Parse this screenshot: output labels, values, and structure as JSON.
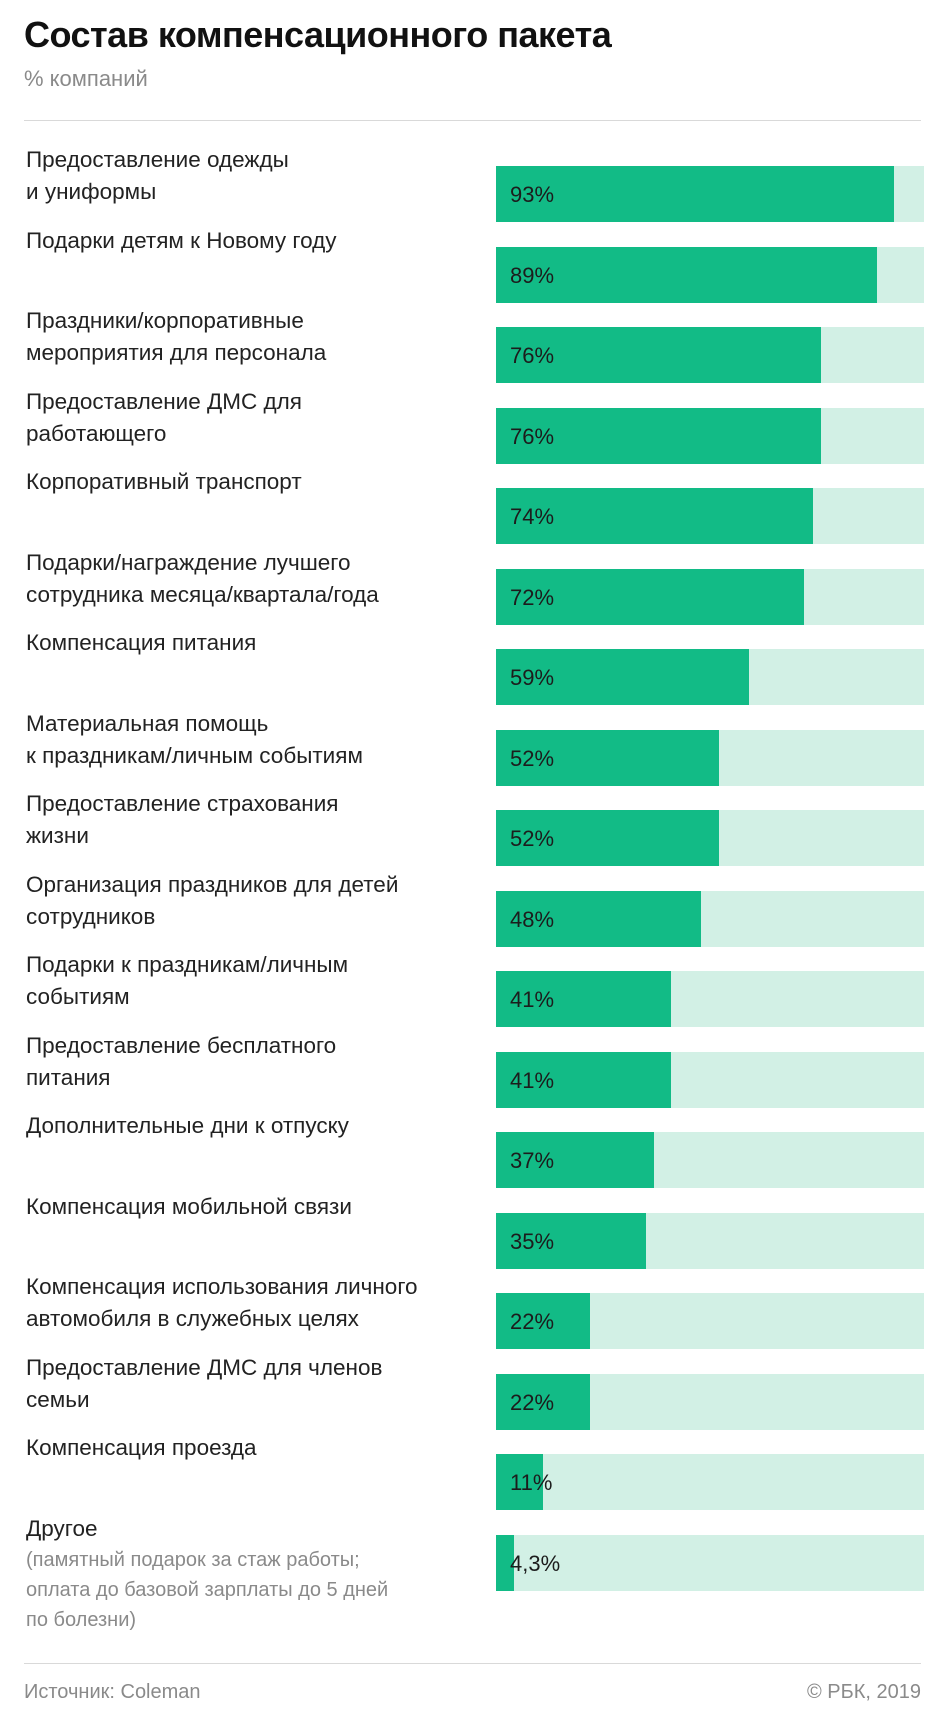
{
  "header": {
    "title": "Состав компенсационного пакета",
    "subtitle": "% компаний"
  },
  "footer": {
    "source": "Источник: Coleman",
    "copyright": "© РБК, 2019"
  },
  "colors": {
    "bar": "#12bb86",
    "track": "#d2f0e5",
    "text": "#222222",
    "muted": "#8a8a8a"
  },
  "chart_data": {
    "type": "bar",
    "orientation": "horizontal",
    "title": "Состав компенсационного пакета",
    "subtitle": "% компаний",
    "xlim": [
      0,
      100
    ],
    "grid": false,
    "categories": [
      {
        "lines": [
          "Предоставление одежды",
          "и униформы"
        ],
        "value": 93,
        "value_label": "93%"
      },
      {
        "lines": [
          "Подарки детям к Новому году"
        ],
        "value": 89,
        "value_label": "89%"
      },
      {
        "lines": [
          "Праздники/корпоративные",
          "мероприятия для персонала"
        ],
        "value": 76,
        "value_label": "76%"
      },
      {
        "lines": [
          "Предоставление ДМС для",
          "работающего"
        ],
        "value": 76,
        "value_label": "76%"
      },
      {
        "lines": [
          "Корпоративный транспорт"
        ],
        "value": 74,
        "value_label": "74%"
      },
      {
        "lines": [
          "Подарки/награждение лучшего",
          "сотрудника месяца/квартала/года"
        ],
        "value": 72,
        "value_label": "72%"
      },
      {
        "lines": [
          "Компенсация питания"
        ],
        "value": 59,
        "value_label": "59%"
      },
      {
        "lines": [
          "Материальная помощь",
          "к праздникам/личным событиям"
        ],
        "value": 52,
        "value_label": "52%"
      },
      {
        "lines": [
          "Предоставление страхования",
          "жизни"
        ],
        "value": 52,
        "value_label": "52%"
      },
      {
        "lines": [
          "Организация праздников для детей",
          "сотрудников"
        ],
        "value": 48,
        "value_label": "48%"
      },
      {
        "lines": [
          "Подарки к праздникам/личным",
          "событиям"
        ],
        "value": 41,
        "value_label": "41%"
      },
      {
        "lines": [
          "Предоставление бесплатного",
          "питания"
        ],
        "value": 41,
        "value_label": "41%"
      },
      {
        "lines": [
          "Дополнительные дни к отпуску"
        ],
        "value": 37,
        "value_label": "37%"
      },
      {
        "lines": [
          "Компенсация мобильной связи"
        ],
        "value": 35,
        "value_label": "35%"
      },
      {
        "lines": [
          "Компенсация использования личного",
          "автомобиля в служебных целях"
        ],
        "value": 22,
        "value_label": "22%"
      },
      {
        "lines": [
          "Предоставление ДМС для членов",
          "семьи"
        ],
        "value": 22,
        "value_label": "22%"
      },
      {
        "lines": [
          "Компенсация проезда"
        ],
        "value": 11,
        "value_label": "11%"
      },
      {
        "lines": [
          "Другое"
        ],
        "note": "(памятный подарок за стаж работы;\nоплата до базовой зарплаты до 5 дней\nпо болезни)",
        "value": 4.3,
        "value_label": "4,3%"
      }
    ]
  }
}
